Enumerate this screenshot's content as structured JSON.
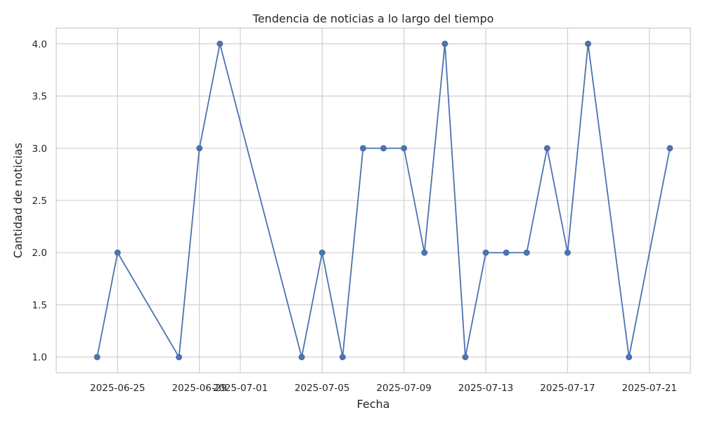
{
  "chart_data": {
    "type": "line",
    "title": "Tendencia de noticias a lo largo del tiempo",
    "xlabel": "Fecha",
    "ylabel": "Cantidad de noticias",
    "x_ticks": [
      "2025-06-25",
      "2025-06-29",
      "2025-07-01",
      "2025-07-05",
      "2025-07-09",
      "2025-07-13",
      "2025-07-17",
      "2025-07-21"
    ],
    "y_ticks": [
      "1.0",
      "1.5",
      "2.0",
      "2.5",
      "3.0",
      "3.5",
      "4.0"
    ],
    "xlim": [
      "2025-06-22",
      "2025-07-23"
    ],
    "ylim": [
      0.85,
      4.15
    ],
    "grid": true,
    "series": [
      {
        "color": "#4c72b0",
        "marker": "circle",
        "points": [
          {
            "x": "2025-06-24",
            "y": 1
          },
          {
            "x": "2025-06-25",
            "y": 2
          },
          {
            "x": "2025-06-28",
            "y": 1
          },
          {
            "x": "2025-06-29",
            "y": 3
          },
          {
            "x": "2025-06-30",
            "y": 4
          },
          {
            "x": "2025-07-04",
            "y": 1
          },
          {
            "x": "2025-07-05",
            "y": 2
          },
          {
            "x": "2025-07-06",
            "y": 1
          },
          {
            "x": "2025-07-07",
            "y": 3
          },
          {
            "x": "2025-07-08",
            "y": 3
          },
          {
            "x": "2025-07-09",
            "y": 3
          },
          {
            "x": "2025-07-10",
            "y": 2
          },
          {
            "x": "2025-07-11",
            "y": 4
          },
          {
            "x": "2025-07-12",
            "y": 1
          },
          {
            "x": "2025-07-13",
            "y": 2
          },
          {
            "x": "2025-07-14",
            "y": 2
          },
          {
            "x": "2025-07-15",
            "y": 2
          },
          {
            "x": "2025-07-16",
            "y": 3
          },
          {
            "x": "2025-07-17",
            "y": 2
          },
          {
            "x": "2025-07-18",
            "y": 4
          },
          {
            "x": "2025-07-20",
            "y": 1
          },
          {
            "x": "2025-07-22",
            "y": 3
          }
        ]
      }
    ]
  }
}
